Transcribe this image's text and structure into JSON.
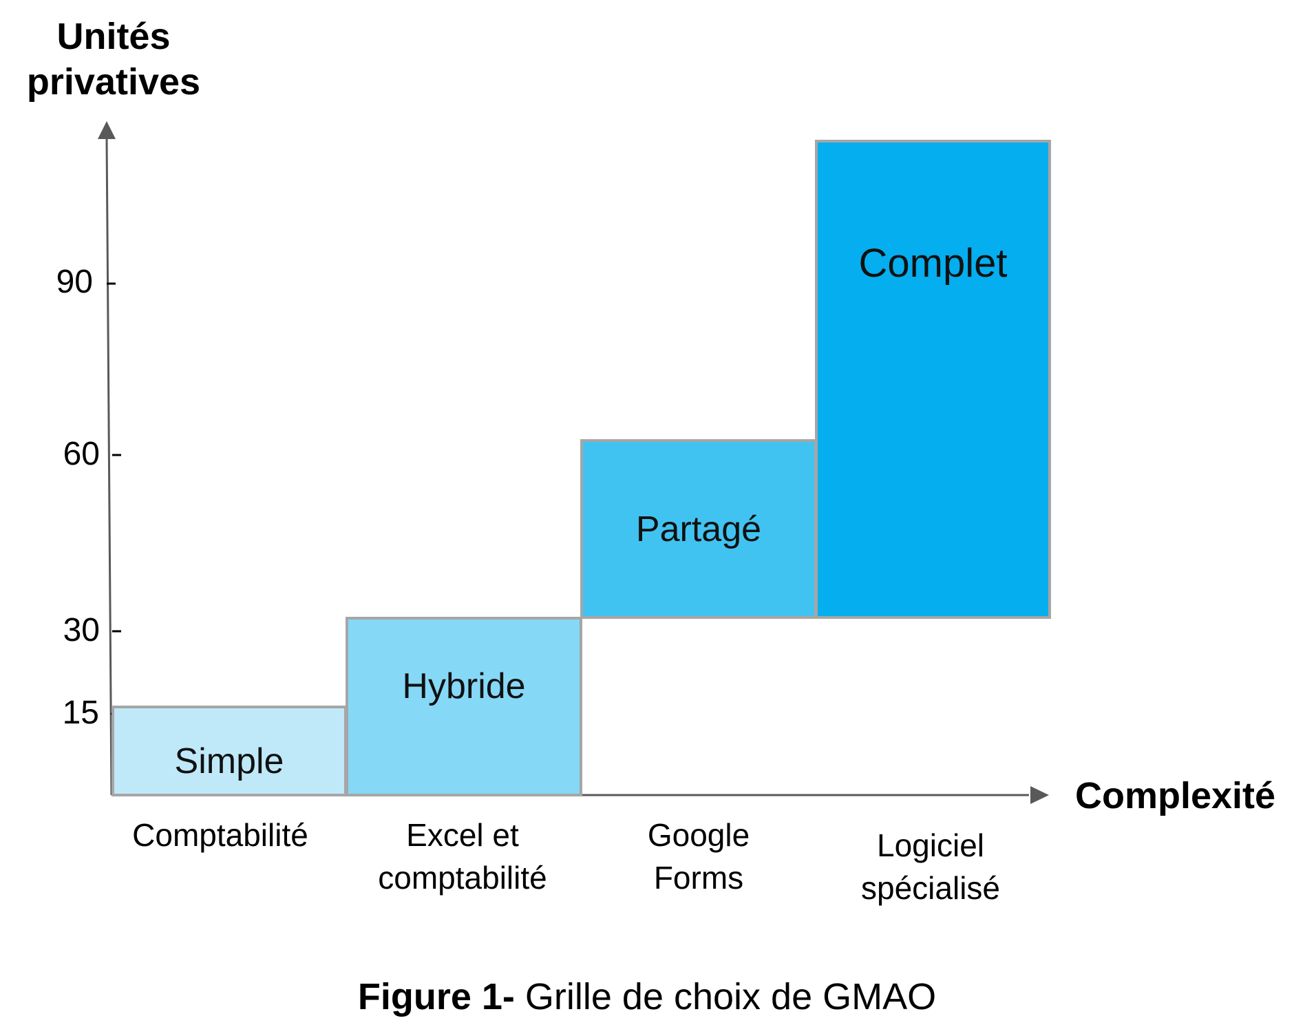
{
  "y_axis": {
    "label_lines": [
      "Unités",
      "privatives"
    ],
    "ticks": [
      "90",
      "60",
      "30",
      "15"
    ]
  },
  "x_axis": {
    "label": "Complexité"
  },
  "blocks": [
    {
      "label": "Simple",
      "range": [
        0,
        15
      ],
      "color": "#bfe9f9"
    },
    {
      "label": "Hybride",
      "range": [
        0,
        30
      ],
      "color": "#86d8f7"
    },
    {
      "label": "Partagé",
      "range": [
        30,
        60
      ],
      "color": "#41c3f1"
    },
    {
      "label": "Complet",
      "range": [
        30,
        112
      ],
      "color": "#04aeef"
    }
  ],
  "categories": [
    {
      "lines": [
        "Comptabilité"
      ]
    },
    {
      "lines": [
        "Excel et",
        "comptabilité"
      ]
    },
    {
      "lines": [
        "Google",
        "Forms"
      ]
    },
    {
      "lines": [
        "Logiciel",
        "spécialisé"
      ]
    }
  ],
  "caption": {
    "bold": "Figure 1-",
    "text": " Grille de choix de GMAO"
  },
  "colors": {
    "axis": "#595959",
    "block_border": "#a6a6a6"
  }
}
